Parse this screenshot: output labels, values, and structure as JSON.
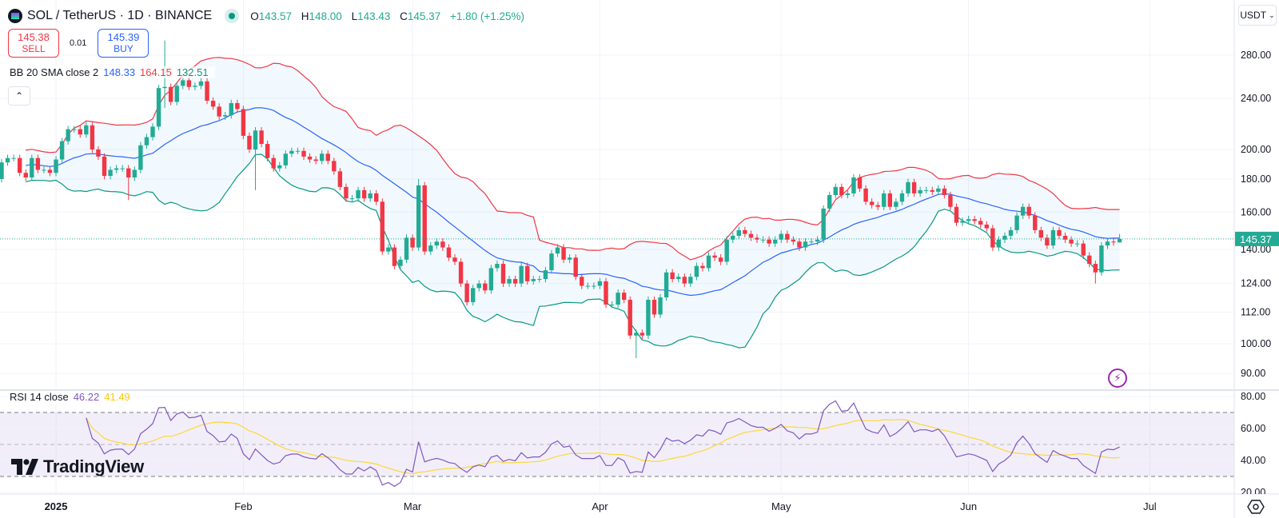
{
  "header": {
    "title": "SOL / TetherUS · 1D · BINANCE",
    "open_label": "O",
    "open": "143.57",
    "high_label": "H",
    "high": "148.00",
    "low_label": "L",
    "low": "143.43",
    "close_label": "C",
    "close": "145.37",
    "change": "+1.80 (+1.25%)"
  },
  "trade": {
    "sell_price": "145.38",
    "sell_label": "SELL",
    "spread": "0.01",
    "buy_price": "145.39",
    "buy_label": "BUY"
  },
  "bb_legend": {
    "name": "BB 20 SMA close 2",
    "basis": "148.33",
    "upper": "164.15",
    "lower": "132.51"
  },
  "rsi_legend": {
    "name": "RSI 14 close",
    "rsi": "46.22",
    "ma": "41.49"
  },
  "currency_button": "USDT",
  "collapse_icon": "chevron-up",
  "brand": "TradingView",
  "colors": {
    "up": "#22ab94",
    "down": "#f23645",
    "bb_basis": "#2962ff",
    "bb_upper": "#f23645",
    "bb_lower": "#089981",
    "rsi": "#7e57c2",
    "rsi_ma": "#fdd835",
    "last_price": "#22ab94"
  },
  "chart_data": {
    "type": "candlestick",
    "title": "SOL / TetherUS · 1D · BINANCE",
    "scale": "log",
    "ylim": [
      86,
      300
    ],
    "last_price": 145.37,
    "last_price_label": "145.37",
    "price_axis": {
      "values": [
        280,
        240,
        200,
        180,
        160,
        140,
        124,
        112,
        100,
        90
      ],
      "labels": [
        "280.00",
        "240.00",
        "200.00",
        "180.00",
        "160.00",
        "140.00",
        "124.00",
        "112.00",
        "100.00",
        "90.00"
      ]
    },
    "time_axis": {
      "labels": [
        "2025",
        "Feb",
        "Mar",
        "Apr",
        "May",
        "Jun",
        "Jul"
      ],
      "candle_index": [
        9,
        40,
        68,
        99,
        129,
        160,
        190
      ]
    },
    "candles": {
      "first_open": 180,
      "close": [
        191,
        194,
        194,
        184,
        181,
        194,
        186,
        186,
        184,
        193,
        206,
        215,
        215,
        211,
        218,
        200,
        195,
        182,
        186,
        187,
        187,
        181,
        186,
        203,
        209,
        217,
        249,
        250,
        237,
        251,
        256,
        250,
        251,
        255,
        238,
        233,
        225,
        226,
        236,
        231,
        210,
        200,
        214,
        204,
        194,
        187,
        189,
        197,
        199,
        199,
        195,
        193,
        192,
        197,
        192,
        185,
        175,
        168,
        168,
        173,
        168,
        171,
        166,
        139,
        141,
        132,
        135,
        146,
        141,
        176,
        139,
        142,
        144,
        141,
        136,
        134,
        124,
        116,
        122,
        124,
        121,
        131,
        133,
        124,
        126,
        124,
        132,
        125,
        126,
        126,
        130,
        138,
        141,
        135,
        136,
        127,
        123,
        123,
        123,
        125,
        115,
        115,
        120,
        117,
        103,
        104,
        103,
        117,
        111,
        118,
        129,
        126,
        127,
        124,
        127,
        132,
        131,
        137,
        136,
        134,
        145,
        147,
        150,
        148,
        146,
        145,
        145,
        143,
        145,
        148,
        145,
        144,
        141,
        144,
        144,
        145,
        162,
        170,
        175,
        170,
        171,
        181,
        174,
        166,
        164,
        163,
        171,
        163,
        166,
        171,
        178,
        171,
        173,
        173,
        172,
        174,
        170,
        163,
        154,
        155,
        156,
        155,
        153,
        151,
        141,
        145,
        147,
        150,
        158,
        163,
        158,
        150,
        146,
        142,
        150,
        147,
        145,
        143,
        143,
        137,
        133,
        129,
        142,
        144,
        143.57,
        145.37
      ],
      "wick_overrides": [
        {
          "i": 21,
          "low": 167
        },
        {
          "i": 27,
          "high": 295,
          "low": 232
        },
        {
          "i": 42,
          "low": 173
        },
        {
          "i": 69,
          "high": 180
        },
        {
          "i": 105,
          "low": 95
        },
        {
          "i": 181,
          "low": 124
        },
        {
          "i": 185,
          "open": 143.57,
          "high": 148.0,
          "low": 143.43
        }
      ]
    },
    "indicators": {
      "bollinger": {
        "length": 20,
        "mult": 2,
        "source": "close"
      },
      "rsi": {
        "length": 14,
        "ma_length": 14,
        "upper_band": 70,
        "middle_band": 50,
        "lower_band": 30,
        "axis_values": [
          80,
          60,
          40,
          20
        ],
        "axis_labels": [
          "80.00",
          "60.00",
          "40.00",
          "20.00"
        ]
      }
    }
  }
}
